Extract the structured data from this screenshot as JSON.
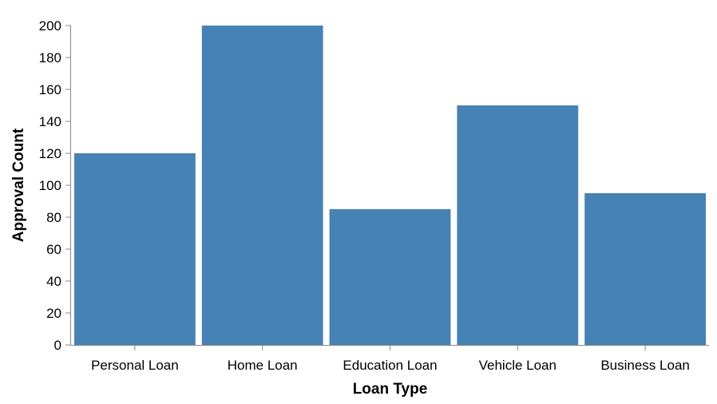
{
  "chart_data": {
    "type": "bar",
    "categories": [
      "Personal Loan",
      "Home Loan",
      "Education Loan",
      "Vehicle Loan",
      "Business Loan"
    ],
    "values": [
      120,
      200,
      85,
      150,
      95
    ],
    "xlabel": "Loan Type",
    "ylabel": "Approval Count",
    "ylim": [
      0,
      200
    ],
    "yticks": [
      0,
      20,
      40,
      60,
      80,
      100,
      120,
      140,
      160,
      180,
      200
    ],
    "grid": false,
    "bar_color": "#4682b4"
  }
}
